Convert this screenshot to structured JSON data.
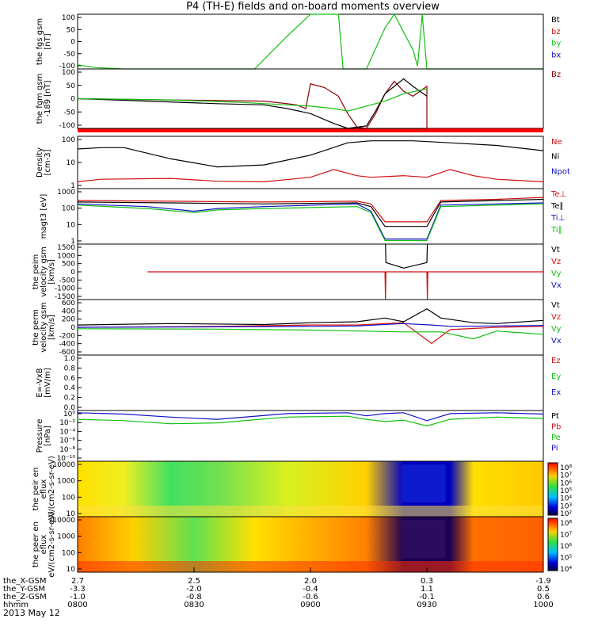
{
  "title": "P4 (TH-E) fields and on-board moments overview",
  "colors": {
    "red": "#d01010",
    "green": "#10c010",
    "blue": "#1010c8",
    "black": "#000000",
    "darkred": "#8b0000"
  },
  "chart_data": [
    {
      "type": "line",
      "ylabel": "the fgs gsm [nT]",
      "yticks": [
        "100",
        "50",
        "0",
        "-50",
        "-100"
      ],
      "ylim": [
        -100,
        100
      ],
      "legend": [
        {
          "label": "Bt",
          "color": "#000000"
        },
        {
          "label": "bz",
          "color": "#d01010"
        },
        {
          "label": "by",
          "color": "#10c010"
        },
        {
          "label": "bx",
          "color": "#1010c8"
        }
      ],
      "series": [
        {
          "name": "by",
          "color": "#10c010",
          "x": [
            0,
            0.04,
            0.1,
            0.38,
            0.45,
            0.5,
            0.56,
            0.57,
            0.62,
            0.66,
            0.68,
            0.72,
            0.73,
            0.74,
            0.75,
            1
          ],
          "y": [
            -85,
            -95,
            -100,
            -100,
            20,
            100,
            100,
            -100,
            -100,
            50,
            100,
            -30,
            -90,
            100,
            -100,
            -100
          ]
        }
      ]
    },
    {
      "type": "line",
      "ylabel": "the fgm gsm -189 [nT]",
      "yticks": [
        "100",
        "50",
        "0",
        "-50",
        "-100"
      ],
      "ylim": [
        -120,
        120
      ],
      "legend": [
        {
          "label": "Bz",
          "color": "#8b0000"
        }
      ],
      "series": [
        {
          "name": "Bz",
          "color": "#8b0000",
          "x": [
            0,
            0.2,
            0.4,
            0.45,
            0.47,
            0.49,
            0.5,
            0.53,
            0.56,
            0.58,
            0.6,
            0.62,
            0.64,
            0.66,
            0.68,
            0.7,
            0.72,
            0.75,
            0.75,
            1
          ],
          "y": [
            0,
            -5,
            -10,
            -20,
            -25,
            -40,
            60,
            45,
            10,
            -60,
            -115,
            -120,
            -60,
            20,
            70,
            30,
            10,
            50,
            -120,
            -120
          ]
        },
        {
          "color": "#000000",
          "x": [
            0,
            0.15,
            0.3,
            0.4,
            0.45,
            0.5,
            0.55,
            0.58,
            0.62,
            0.64,
            0.66,
            0.68,
            0.7,
            0.72,
            0.75
          ],
          "y": [
            0,
            -10,
            -20,
            -25,
            -40,
            -60,
            -100,
            -120,
            -110,
            -50,
            20,
            50,
            80,
            50,
            10
          ]
        },
        {
          "color": "#10c010",
          "x": [
            0,
            0.2,
            0.35,
            0.45,
            0.5,
            0.55,
            0.58,
            0.62,
            0.66,
            0.7,
            0.75
          ],
          "y": [
            0,
            -5,
            -15,
            -25,
            -30,
            -40,
            -50,
            -30,
            -10,
            20,
            40
          ]
        }
      ]
    },
    {
      "type": "line",
      "ylabel": "Density [cm-3]",
      "yticks": [
        "100",
        "10",
        "1"
      ],
      "ylim": [
        0.7,
        250
      ],
      "yscale": "log",
      "legend": [
        {
          "label": "Ne",
          "color": "#d01010"
        },
        {
          "label": "Ni",
          "color": "#000000"
        },
        {
          "label": "Npot",
          "color": "#1010c8"
        }
      ],
      "series": [
        {
          "name": "Ni",
          "color": "#000000",
          "x": [
            0,
            0.05,
            0.1,
            0.2,
            0.3,
            0.4,
            0.5,
            0.58,
            0.63,
            0.66,
            0.68,
            0.72,
            0.8,
            0.9,
            1
          ],
          "y": [
            60,
            70,
            70,
            20,
            8,
            10,
            30,
            120,
            150,
            150,
            150,
            150,
            120,
            90,
            50
          ]
        },
        {
          "name": "Ne",
          "color": "#d01010",
          "x": [
            0,
            0.05,
            0.2,
            0.3,
            0.4,
            0.5,
            0.55,
            0.6,
            0.63,
            0.7,
            0.75,
            0.8,
            0.85,
            0.9,
            1
          ],
          "y": [
            1.5,
            2,
            2.2,
            1.6,
            1.5,
            2.5,
            6,
            3,
            2.5,
            3,
            2.5,
            6,
            3,
            2,
            1.5
          ]
        }
      ]
    },
    {
      "type": "line",
      "ylabel": "magt3 [eV]",
      "yticks": [
        "1000",
        "100",
        "10",
        "1"
      ],
      "ylim": [
        0.7,
        3000
      ],
      "yscale": "log",
      "legend": [
        {
          "label": "Te⊥",
          "color": "#d01010"
        },
        {
          "label": "Te∥",
          "color": "#000000"
        },
        {
          "label": "Ti⊥",
          "color": "#1010c8"
        },
        {
          "label": "Ti∥",
          "color": "#10c010"
        }
      ],
      "series": [
        {
          "name": "Te⊥",
          "color": "#d01010",
          "x": [
            0,
            0.2,
            0.4,
            0.6,
            0.63,
            0.66,
            0.75,
            0.78,
            0.9,
            1
          ],
          "y": [
            500,
            450,
            400,
            450,
            300,
            20,
            20,
            500,
            600,
            800
          ]
        },
        {
          "name": "Te∥",
          "color": "#000000",
          "x": [
            0,
            0.2,
            0.4,
            0.6,
            0.63,
            0.66,
            0.75,
            0.78,
            0.9,
            1
          ],
          "y": [
            400,
            350,
            300,
            350,
            200,
            10,
            10,
            400,
            500,
            600
          ]
        },
        {
          "name": "Ti⊥",
          "color": "#1010c8",
          "x": [
            0,
            0.15,
            0.25,
            0.3,
            0.4,
            0.6,
            0.63,
            0.66,
            0.75,
            0.78,
            0.9,
            1
          ],
          "y": [
            300,
            200,
            100,
            150,
            200,
            300,
            100,
            1.5,
            1.5,
            250,
            300,
            350
          ]
        },
        {
          "name": "Ti∥",
          "color": "#10c010",
          "x": [
            0,
            0.15,
            0.25,
            0.3,
            0.4,
            0.6,
            0.63,
            0.66,
            0.75,
            0.78,
            0.9,
            1
          ],
          "y": [
            250,
            150,
            80,
            120,
            150,
            200,
            80,
            1.2,
            1.2,
            200,
            250,
            300
          ]
        }
      ]
    },
    {
      "type": "line",
      "ylabel": "the peim velocity gsm [km/s]",
      "yticks": [
        "1500",
        "1000",
        "500",
        "0",
        "-500",
        "-1000",
        "-1500"
      ],
      "ylim": [
        -1500,
        1500
      ],
      "legend": [
        {
          "label": "Vt",
          "color": "#000000"
        },
        {
          "label": "Vz",
          "color": "#d01010"
        },
        {
          "label": "Vy",
          "color": "#10c010"
        },
        {
          "label": "Vx",
          "color": "#1010c8"
        }
      ],
      "series": [
        {
          "name": "Vz",
          "color": "#d01010",
          "x": [
            0.15,
            0.66,
            0.661,
            0.662,
            0.75,
            0.751,
            0.752,
            1
          ],
          "y": [
            0,
            0,
            -1500,
            0,
            0,
            -1500,
            0,
            0
          ]
        },
        {
          "name": "Vt",
          "color": "#000000",
          "x": [
            0.66,
            0.661,
            0.662,
            0.7,
            0.75,
            0.751
          ],
          "y": [
            1500,
            1500,
            500,
            200,
            500,
            1500
          ]
        }
      ]
    },
    {
      "type": "line",
      "ylabel": "the perm velocity gsm [km/s]",
      "yticks": [
        "600",
        "400",
        "200",
        "0",
        "-200",
        "-400",
        "-600"
      ],
      "ylim": [
        -600,
        600
      ],
      "legend": [
        {
          "label": "Vt",
          "color": "#000000"
        },
        {
          "label": "Vz",
          "color": "#d01010"
        },
        {
          "label": "Vy",
          "color": "#10c010"
        },
        {
          "label": "Vx",
          "color": "#1010c8"
        }
      ],
      "series": [
        {
          "name": "Vt",
          "color": "#000000",
          "x": [
            0,
            0.2,
            0.4,
            0.5,
            0.6,
            0.66,
            0.7,
            0.75,
            0.78,
            0.85,
            0.9,
            1
          ],
          "y": [
            50,
            80,
            60,
            100,
            120,
            200,
            120,
            400,
            200,
            100,
            80,
            150
          ]
        },
        {
          "name": "Vz",
          "color": "#d01010",
          "x": [
            0,
            0.3,
            0.5,
            0.6,
            0.7,
            0.76,
            0.8,
            0.9,
            1
          ],
          "y": [
            0,
            20,
            50,
            50,
            100,
            -350,
            -50,
            0,
            20
          ]
        },
        {
          "name": "Vy",
          "color": "#10c010",
          "x": [
            0,
            0.3,
            0.5,
            0.6,
            0.7,
            0.78,
            0.85,
            0.9,
            1
          ],
          "y": [
            -30,
            -40,
            -60,
            -80,
            -100,
            -100,
            -250,
            -80,
            -150
          ]
        },
        {
          "name": "Vx",
          "color": "#1010c8",
          "x": [
            0,
            0.3,
            0.5,
            0.6,
            0.7,
            0.76,
            0.8,
            0.9,
            1
          ],
          "y": [
            0,
            10,
            20,
            30,
            80,
            50,
            20,
            30,
            40
          ]
        }
      ]
    },
    {
      "type": "line",
      "ylabel": "E=-VxB [mV/m]",
      "yticks": [
        "1.0",
        "0.8",
        "0.6",
        "0.4",
        "0.2",
        "0.0"
      ],
      "ylim": [
        0,
        1
      ],
      "legend": [
        {
          "label": "Ez",
          "color": "#d01010"
        },
        {
          "label": "Ey",
          "color": "#10c010"
        },
        {
          "label": "Ex",
          "color": "#1010c8"
        }
      ],
      "series": []
    },
    {
      "type": "line",
      "ylabel": "Pressure [nPa]",
      "yticks": [
        "10⁰",
        "10⁻²",
        "10⁻⁴",
        "10⁻⁶",
        "10⁻⁸",
        "10⁻¹⁰"
      ],
      "ylim": [
        -10.5,
        1
      ],
      "yscale": "log10-exponent",
      "legend": [
        {
          "label": "Pt",
          "color": "#000000"
        },
        {
          "label": "Pb",
          "color": "#d01010"
        },
        {
          "label": "Pe",
          "color": "#10c010"
        },
        {
          "label": "Pi",
          "color": "#1010c8"
        }
      ],
      "series": [
        {
          "name": "Pi",
          "color": "#1010c8",
          "x": [
            0,
            0.1,
            0.2,
            0.3,
            0.45,
            0.58,
            0.62,
            0.66,
            0.7,
            0.75,
            0.8,
            0.9,
            1
          ],
          "y": [
            0.5,
            0.2,
            -0.5,
            -1,
            0.3,
            0.5,
            -0.2,
            0.3,
            0.5,
            -1.3,
            0.3,
            0.5,
            0.2
          ]
        },
        {
          "name": "Pe",
          "color": "#10c010",
          "x": [
            0,
            0.1,
            0.2,
            0.3,
            0.45,
            0.58,
            0.62,
            0.66,
            0.7,
            0.75,
            0.8,
            0.9,
            1
          ],
          "y": [
            -1,
            -1.3,
            -2,
            -1.8,
            -0.5,
            -0.3,
            -1,
            -1.5,
            -1.2,
            -2.5,
            -1,
            -0.5,
            -0.8
          ]
        }
      ]
    },
    {
      "type": "heatmap",
      "ylabel": "the peir en eflux eV/(cm2-s-sr-eV)",
      "yticks": [
        "10000",
        "1000",
        "100",
        "10"
      ],
      "colorbar_ticks": [
        "10⁸",
        "10⁷",
        "10⁶",
        "10⁵",
        "10⁴",
        "10³",
        "10²"
      ]
    },
    {
      "type": "heatmap",
      "ylabel": "the peer en eflux eV/(cm2-s-sr-eV)",
      "yticks": [
        "10000",
        "1000",
        "100",
        "10"
      ],
      "colorbar_ticks": [
        "10⁸",
        "10⁷",
        "10⁶",
        "10⁵",
        "10⁴"
      ]
    }
  ],
  "xaxis": {
    "rows": [
      {
        "label": "the_X-GSM",
        "values": [
          "2.7",
          "2.5",
          "2.0",
          "0.3",
          "-1.9"
        ]
      },
      {
        "label": "the_Y-GSM",
        "values": [
          "-3.3",
          "-2.0",
          "-0.4",
          "1.1",
          "0.5"
        ]
      },
      {
        "label": "the_Z-GSM",
        "values": [
          "-1.0",
          "-0.8",
          "-0.6",
          "-0.1",
          "0.6"
        ]
      },
      {
        "label": "hhmm",
        "values": [
          "0800",
          "0830",
          "0900",
          "0930",
          "1000"
        ]
      }
    ],
    "date": "2013 May 12"
  }
}
